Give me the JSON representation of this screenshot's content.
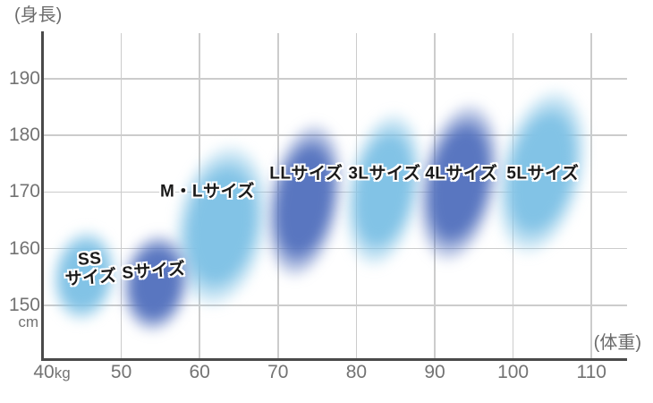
{
  "page": {
    "background": "#ffffff"
  },
  "style_colors": {
    "axis": "#4a4a4a",
    "grid": "#cccccc",
    "tick_text": "#737373",
    "title_text": "#6b6b6b",
    "label_text": "#1a1a1a",
    "label_outline": "#ffffff"
  },
  "chart_data": {
    "type": "scatter",
    "variant": "blurred-ellipse-size-regions",
    "title": "",
    "x_axis": {
      "title": "(体重)",
      "unit_suffix_on_first_tick": "kg",
      "ticks": [
        40,
        50,
        60,
        70,
        80,
        90,
        100,
        110
      ],
      "range_kg": [
        40,
        114.5
      ]
    },
    "y_axis": {
      "title": "(身長)",
      "unit_below_last_tick": "cm",
      "ticks": [
        190,
        180,
        170,
        160,
        150
      ],
      "range_cm": [
        140.2,
        198.4
      ]
    },
    "grid": true,
    "legend": "none",
    "colors": {
      "light": "#82c3e6",
      "dark": "#5976c0"
    },
    "series": [
      {
        "name": "SSサイズ",
        "label_lines": [
          "SS",
          "サイズ"
        ],
        "tone": "light",
        "center_kg": 45.3,
        "center_cm": 155.2,
        "rx_kg": 4.8,
        "ry_cm": 9.5,
        "tilt_deg": 8,
        "label_kg": 46.1,
        "label_cm": 156.5,
        "label_tilt_deg": -4
      },
      {
        "name": "Sサイズ",
        "tone": "dark",
        "center_kg": 54.4,
        "center_cm": 153.9,
        "rx_kg": 5.0,
        "ry_cm": 10.1,
        "tilt_deg": 8,
        "label_kg": 54.2,
        "label_cm": 156.0,
        "label_tilt_deg": -4
      },
      {
        "name": "M・Lサイズ",
        "tone": "light",
        "center_kg": 62.8,
        "center_cm": 164.0,
        "rx_kg": 6.8,
        "ry_cm": 16.6,
        "tilt_deg": 10,
        "label_kg": 61.0,
        "label_cm": 170.1,
        "label_tilt_deg": 0
      },
      {
        "name": "LLサイズ",
        "tone": "dark",
        "center_kg": 73.4,
        "center_cm": 168.5,
        "rx_kg": 5.4,
        "ry_cm": 15.8,
        "tilt_deg": 10,
        "label_kg": 73.6,
        "label_cm": 173.2,
        "label_tilt_deg": 0
      },
      {
        "name": "3Lサイズ",
        "tone": "light",
        "center_kg": 83.5,
        "center_cm": 170.4,
        "rx_kg": 5.5,
        "ry_cm": 15.8,
        "tilt_deg": 10,
        "label_kg": 83.6,
        "label_cm": 173.2,
        "label_tilt_deg": 0
      },
      {
        "name": "4Lサイズ",
        "tone": "dark",
        "center_kg": 93.1,
        "center_cm": 171.6,
        "rx_kg": 5.7,
        "ry_cm": 16.3,
        "tilt_deg": 11,
        "label_kg": 93.4,
        "label_cm": 173.2,
        "label_tilt_deg": 0
      },
      {
        "name": "5Lサイズ",
        "tone": "light",
        "center_kg": 103.6,
        "center_cm": 173.5,
        "rx_kg": 6.2,
        "ry_cm": 17.1,
        "tilt_deg": 13,
        "label_kg": 103.8,
        "label_cm": 173.2,
        "label_tilt_deg": 0
      }
    ]
  }
}
